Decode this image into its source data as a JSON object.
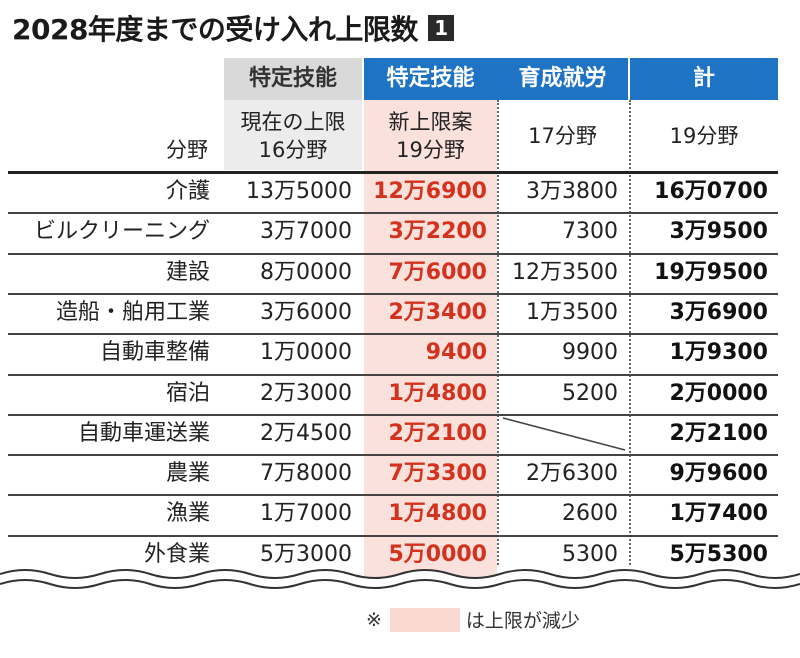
{
  "title": "2028年度までの受け入れ上限数",
  "title_badge": "1",
  "colors": {
    "highlight_bg": "#fbe1dc",
    "highlight_text": "#d2321e",
    "header_blue": "#1f73c4",
    "header_gray": "#d9d9d9"
  },
  "headers": {
    "top": [
      "特定技能",
      "特定技能",
      "育成就労",
      "計"
    ],
    "row_label": "分野",
    "sub": [
      [
        "現在の上限",
        "16分野"
      ],
      [
        "新上限案",
        "19分野"
      ],
      [
        "17分野"
      ],
      [
        "19分野"
      ]
    ]
  },
  "rows": [
    {
      "field": "介護",
      "current": "13万5000",
      "new": "12万6900",
      "ikusei": "3万3800",
      "total": "16万0700"
    },
    {
      "field": "ビルクリーニング",
      "current": "3万7000",
      "new": "3万2200",
      "ikusei": "7300",
      "total": "3万9500"
    },
    {
      "field": "建設",
      "current": "8万0000",
      "new": "7万6000",
      "ikusei": "12万3500",
      "total": "19万9500"
    },
    {
      "field": "造船・舶用工業",
      "current": "3万6000",
      "new": "2万3400",
      "ikusei": "1万3500",
      "total": "3万6900"
    },
    {
      "field": "自動車整備",
      "current": "1万0000",
      "new": "9400",
      "ikusei": "9900",
      "total": "1万9300"
    },
    {
      "field": "宿泊",
      "current": "2万3000",
      "new": "1万4800",
      "ikusei": "5200",
      "total": "2万0000"
    },
    {
      "field": "自動車運送業",
      "current": "2万4500",
      "new": "2万2100",
      "ikusei": "",
      "total": "2万2100"
    },
    {
      "field": "農業",
      "current": "7万8000",
      "new": "7万3300",
      "ikusei": "2万6300",
      "total": "9万9600"
    },
    {
      "field": "漁業",
      "current": "1万7000",
      "new": "1万4800",
      "ikusei": "2600",
      "total": "1万7400"
    },
    {
      "field": "外食業",
      "current": "5万3000",
      "new": "5万0000",
      "ikusei": "5300",
      "total": "5万5300"
    }
  ],
  "note": {
    "mark": "※",
    "text": "は上限が減少"
  }
}
